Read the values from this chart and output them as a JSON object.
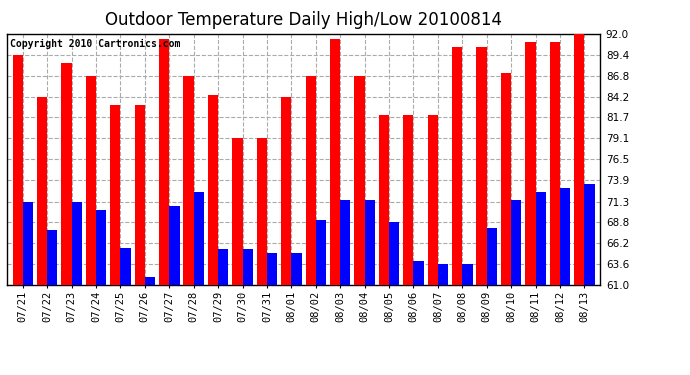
{
  "title": "Outdoor Temperature Daily High/Low 20100814",
  "copyright": "Copyright 2010 Cartronics.com",
  "categories": [
    "07/21",
    "07/22",
    "07/23",
    "07/24",
    "07/25",
    "07/26",
    "07/27",
    "07/28",
    "07/29",
    "07/30",
    "07/31",
    "08/01",
    "08/02",
    "08/03",
    "08/04",
    "08/05",
    "08/06",
    "08/07",
    "08/08",
    "08/09",
    "08/10",
    "08/11",
    "08/12",
    "08/13"
  ],
  "highs": [
    89.4,
    84.2,
    88.4,
    86.8,
    83.2,
    83.2,
    91.4,
    86.8,
    84.4,
    79.1,
    79.1,
    84.2,
    86.8,
    91.4,
    86.8,
    82.0,
    82.0,
    82.0,
    90.4,
    90.4,
    87.2,
    91.0,
    91.0,
    92.0
  ],
  "lows": [
    71.3,
    67.8,
    71.3,
    70.3,
    65.6,
    62.0,
    70.7,
    72.5,
    65.4,
    65.4,
    65.0,
    65.0,
    69.0,
    71.5,
    71.5,
    68.8,
    64.0,
    63.6,
    63.6,
    68.0,
    71.5,
    72.5,
    73.0,
    73.5
  ],
  "ylim_min": 61.0,
  "ylim_max": 92.0,
  "yticks": [
    61.0,
    63.6,
    66.2,
    68.8,
    71.3,
    73.9,
    76.5,
    79.1,
    81.7,
    84.2,
    86.8,
    89.4,
    92.0
  ],
  "high_color": "#ff0000",
  "low_color": "#0000ff",
  "bg_color": "#ffffff",
  "grid_color": "#aaaaaa",
  "title_fontsize": 12,
  "tick_fontsize": 7.5,
  "copyright_fontsize": 7
}
